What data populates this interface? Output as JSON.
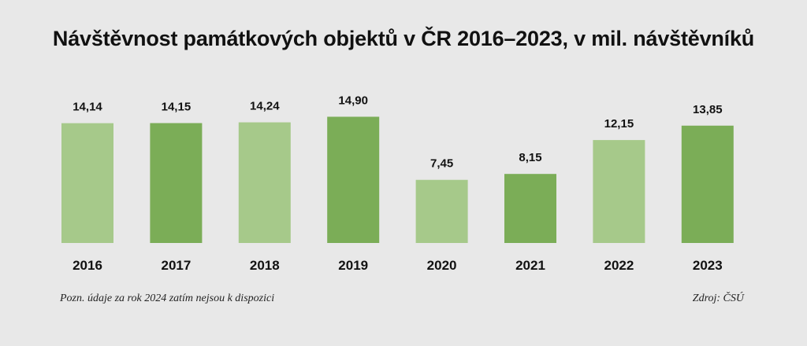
{
  "colors": {
    "background": "#e8e8e8",
    "bar_light": "#a6c98a",
    "bar_dark": "#7bad57"
  },
  "chart_data": {
    "type": "bar",
    "title": "Návštěvnost památkových objektů v ČR 2016–2023, v mil. návštěvníků",
    "categories": [
      "2016",
      "2017",
      "2018",
      "2019",
      "2020",
      "2021",
      "2022",
      "2023"
    ],
    "values": [
      14.14,
      14.15,
      14.24,
      14.9,
      7.45,
      8.15,
      12.15,
      13.85
    ],
    "value_labels": [
      "14,14",
      "14,15",
      "14,24",
      "14,90",
      "7,45",
      "8,15",
      "12,15",
      "13,85"
    ],
    "xlabel": "",
    "ylabel": "",
    "ylim": [
      0,
      15.5
    ],
    "grid": false,
    "bar_colors": [
      "#a6c98a",
      "#7bad57",
      "#a6c98a",
      "#7bad57",
      "#a6c98a",
      "#7bad57",
      "#a6c98a",
      "#7bad57"
    ]
  },
  "footer": {
    "note": "Pozn. údaje za rok 2024 zatím nejsou k dispozici",
    "source": "Zdroj: ČSÚ"
  }
}
